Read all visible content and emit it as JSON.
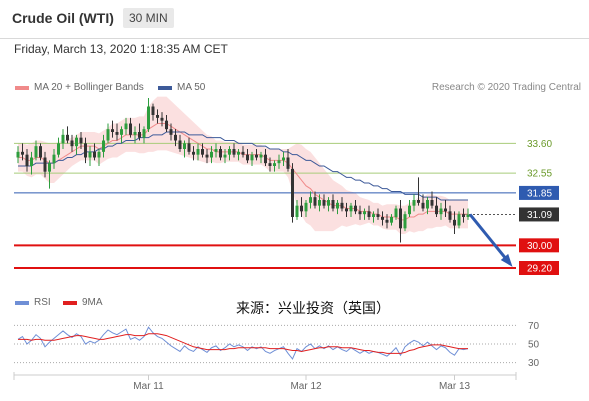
{
  "header": {
    "title": "Crude Oil (WTI)",
    "interval": "30 MIN"
  },
  "timestamp": "Friday, March 13, 2020 1:18:35 AM CET",
  "legend_main": [
    {
      "label": "MA 20 + Bollinger Bands",
      "color": "#f08a8a"
    },
    {
      "label": "MA 50",
      "color": "#3d5a99"
    }
  ],
  "legend_rsi": [
    {
      "label": "RSI",
      "color": "#6f8fd6"
    },
    {
      "label": "9MA",
      "color": "#e02020"
    }
  ],
  "credit": "Research © 2020 Trading Central",
  "source_note": "来源：兴业投资（英国）",
  "chart_data": {
    "type": "candlestick",
    "x_ticks": [
      "Mar 11",
      "Mar 12",
      "Mar 13"
    ],
    "price_range": [
      28.6,
      35.2
    ],
    "levels": [
      {
        "label": "33.60",
        "value": 33.6,
        "kind": "resistance"
      },
      {
        "label": "32.55",
        "value": 32.55,
        "kind": "resistance"
      },
      {
        "label": "31.85",
        "value": 31.85,
        "kind": "pivot"
      },
      {
        "label": "31.09",
        "value": 31.09,
        "kind": "last"
      },
      {
        "label": "30.00",
        "value": 30.0,
        "kind": "support"
      },
      {
        "label": "29.20",
        "value": 29.2,
        "kind": "support"
      }
    ],
    "candles": [
      [
        33.1,
        33.5,
        32.9,
        33.3
      ],
      [
        33.3,
        33.6,
        33.0,
        33.2
      ],
      [
        33.2,
        33.4,
        32.6,
        32.8
      ],
      [
        32.8,
        33.3,
        32.5,
        33.1
      ],
      [
        33.1,
        33.7,
        33.0,
        33.5
      ],
      [
        33.5,
        33.6,
        33.0,
        33.1
      ],
      [
        33.1,
        33.3,
        32.4,
        32.6
      ],
      [
        32.6,
        33.0,
        32.0,
        32.9
      ],
      [
        32.9,
        33.4,
        32.7,
        33.2
      ],
      [
        33.2,
        33.8,
        33.1,
        33.6
      ],
      [
        33.6,
        34.1,
        33.4,
        33.9
      ],
      [
        33.9,
        34.2,
        33.6,
        33.7
      ],
      [
        33.7,
        33.9,
        33.3,
        33.5
      ],
      [
        33.5,
        33.9,
        33.2,
        33.8
      ],
      [
        33.8,
        34.0,
        33.4,
        33.6
      ],
      [
        33.6,
        33.8,
        32.9,
        33.1
      ],
      [
        33.1,
        33.5,
        32.8,
        33.3
      ],
      [
        33.3,
        33.6,
        33.0,
        33.1
      ],
      [
        33.1,
        33.4,
        32.8,
        33.3
      ],
      [
        33.3,
        33.9,
        33.1,
        33.7
      ],
      [
        33.7,
        34.3,
        33.6,
        34.1
      ],
      [
        34.1,
        34.4,
        33.8,
        34.0
      ],
      [
        34.0,
        34.3,
        33.7,
        33.9
      ],
      [
        33.9,
        34.2,
        33.6,
        34.1
      ],
      [
        34.1,
        34.5,
        33.9,
        34.3
      ],
      [
        34.3,
        34.5,
        33.8,
        33.9
      ],
      [
        33.9,
        34.2,
        33.6,
        34.0
      ],
      [
        34.0,
        34.3,
        33.7,
        33.8
      ],
      [
        33.8,
        34.2,
        33.6,
        34.1
      ],
      [
        34.1,
        35.2,
        34.0,
        34.9
      ],
      [
        34.9,
        35.0,
        34.4,
        34.6
      ],
      [
        34.6,
        34.8,
        34.3,
        34.5
      ],
      [
        34.5,
        34.7,
        34.2,
        34.4
      ],
      [
        34.4,
        34.6,
        34.0,
        34.1
      ],
      [
        34.1,
        34.3,
        33.7,
        33.9
      ],
      [
        33.9,
        34.1,
        33.5,
        33.7
      ],
      [
        33.7,
        33.9,
        33.3,
        33.4
      ],
      [
        33.4,
        33.7,
        33.1,
        33.6
      ],
      [
        33.6,
        33.8,
        33.2,
        33.3
      ],
      [
        33.3,
        33.5,
        33.0,
        33.2
      ],
      [
        33.2,
        33.6,
        33.0,
        33.4
      ],
      [
        33.4,
        33.6,
        33.1,
        33.2
      ],
      [
        33.2,
        33.4,
        32.9,
        33.1
      ],
      [
        33.1,
        33.5,
        32.9,
        33.3
      ],
      [
        33.3,
        33.6,
        33.1,
        33.4
      ],
      [
        33.4,
        33.5,
        33.0,
        33.1
      ],
      [
        33.1,
        33.4,
        32.9,
        33.2
      ],
      [
        33.2,
        33.5,
        33.0,
        33.4
      ],
      [
        33.4,
        33.6,
        33.1,
        33.2
      ],
      [
        33.2,
        33.4,
        33.0,
        33.3
      ],
      [
        33.3,
        33.5,
        33.1,
        33.2
      ],
      [
        33.2,
        33.4,
        32.9,
        33.0
      ],
      [
        33.0,
        33.3,
        32.8,
        33.2
      ],
      [
        33.2,
        33.4,
        33.0,
        33.1
      ],
      [
        33.1,
        33.3,
        32.9,
        33.2
      ],
      [
        33.2,
        33.4,
        32.8,
        32.9
      ],
      [
        32.9,
        33.1,
        32.6,
        32.8
      ],
      [
        32.8,
        33.0,
        32.6,
        32.9
      ],
      [
        32.9,
        33.2,
        32.7,
        33.0
      ],
      [
        33.0,
        33.3,
        32.8,
        33.1
      ],
      [
        33.1,
        33.4,
        32.6,
        32.7
      ],
      [
        32.7,
        32.9,
        30.8,
        31.0
      ],
      [
        31.0,
        31.6,
        30.9,
        31.4
      ],
      [
        31.4,
        31.7,
        31.0,
        31.2
      ],
      [
        31.2,
        31.6,
        31.0,
        31.5
      ],
      [
        31.5,
        31.9,
        31.3,
        31.7
      ],
      [
        31.7,
        31.9,
        31.3,
        31.4
      ],
      [
        31.4,
        31.8,
        31.2,
        31.6
      ],
      [
        31.6,
        31.8,
        31.3,
        31.4
      ],
      [
        31.4,
        31.7,
        31.2,
        31.6
      ],
      [
        31.6,
        31.8,
        31.2,
        31.3
      ],
      [
        31.3,
        31.6,
        31.1,
        31.5
      ],
      [
        31.5,
        31.7,
        31.2,
        31.3
      ],
      [
        31.3,
        31.5,
        31.0,
        31.2
      ],
      [
        31.2,
        31.5,
        31.0,
        31.4
      ],
      [
        31.4,
        31.6,
        31.1,
        31.2
      ],
      [
        31.2,
        31.4,
        30.9,
        31.1
      ],
      [
        31.1,
        31.3,
        30.9,
        31.2
      ],
      [
        31.2,
        31.4,
        30.9,
        31.0
      ],
      [
        31.0,
        31.2,
        30.8,
        31.1
      ],
      [
        31.1,
        31.3,
        30.9,
        31.0
      ],
      [
        31.0,
        31.2,
        30.7,
        30.9
      ],
      [
        30.9,
        31.1,
        30.6,
        30.8
      ],
      [
        30.8,
        31.1,
        30.7,
        31.0
      ],
      [
        31.0,
        31.4,
        30.9,
        31.3
      ],
      [
        31.3,
        31.6,
        30.1,
        30.6
      ],
      [
        30.6,
        31.2,
        30.5,
        31.1
      ],
      [
        31.1,
        31.6,
        31.0,
        31.4
      ],
      [
        31.4,
        31.8,
        31.2,
        31.6
      ],
      [
        31.6,
        32.4,
        31.4,
        31.5
      ],
      [
        31.5,
        31.8,
        31.2,
        31.3
      ],
      [
        31.3,
        31.7,
        31.1,
        31.6
      ],
      [
        31.6,
        31.9,
        31.3,
        31.4
      ],
      [
        31.4,
        31.7,
        31.0,
        31.1
      ],
      [
        31.1,
        31.5,
        30.9,
        31.3
      ],
      [
        31.3,
        31.6,
        31.0,
        31.2
      ],
      [
        31.2,
        31.4,
        30.8,
        30.9
      ],
      [
        30.9,
        31.2,
        30.4,
        30.7
      ],
      [
        30.7,
        31.2,
        30.6,
        31.1
      ],
      [
        31.1,
        31.3,
        30.8,
        31.0
      ],
      [
        31.0,
        31.3,
        30.9,
        31.09
      ]
    ],
    "ma20": [
      33.1,
      33.1,
      33.0,
      33.0,
      33.1,
      33.1,
      33.0,
      32.9,
      32.9,
      33.0,
      33.1,
      33.2,
      33.3,
      33.4,
      33.5,
      33.5,
      33.5,
      33.5,
      33.4,
      33.5,
      33.6,
      33.7,
      33.7,
      33.8,
      33.9,
      33.9,
      33.9,
      33.9,
      33.9,
      34.1,
      34.2,
      34.3,
      34.3,
      34.3,
      34.2,
      34.1,
      34.0,
      33.9,
      33.8,
      33.7,
      33.6,
      33.5,
      33.4,
      33.4,
      33.3,
      33.3,
      33.3,
      33.3,
      33.3,
      33.3,
      33.2,
      33.2,
      33.2,
      33.2,
      33.2,
      33.1,
      33.0,
      33.0,
      33.0,
      33.0,
      32.9,
      32.7,
      32.5,
      32.3,
      32.1,
      32.0,
      31.8,
      31.7,
      31.6,
      31.5,
      31.4,
      31.4,
      31.4,
      31.3,
      31.3,
      31.3,
      31.2,
      31.2,
      31.2,
      31.1,
      31.1,
      31.0,
      31.0,
      31.0,
      31.0,
      30.9,
      30.9,
      31.0,
      31.0,
      31.1,
      31.1,
      31.2,
      31.2,
      31.2,
      31.2,
      31.2,
      31.1,
      31.1,
      31.1,
      31.1,
      31.1
    ],
    "ma50": [
      32.8,
      32.8,
      32.8,
      32.8,
      32.9,
      32.9,
      32.9,
      32.9,
      32.9,
      33.0,
      33.0,
      33.1,
      33.1,
      33.2,
      33.2,
      33.3,
      33.3,
      33.3,
      33.4,
      33.4,
      33.5,
      33.5,
      33.6,
      33.6,
      33.7,
      33.7,
      33.7,
      33.8,
      33.8,
      33.8,
      33.9,
      33.9,
      33.9,
      34.0,
      34.0,
      34.0,
      34.0,
      34.0,
      33.9,
      33.9,
      33.9,
      33.9,
      33.8,
      33.8,
      33.8,
      33.8,
      33.7,
      33.7,
      33.7,
      33.6,
      33.6,
      33.6,
      33.6,
      33.5,
      33.5,
      33.5,
      33.4,
      33.4,
      33.4,
      33.3,
      33.3,
      33.2,
      33.2,
      33.1,
      33.0,
      33.0,
      32.9,
      32.8,
      32.8,
      32.7,
      32.6,
      32.6,
      32.5,
      32.4,
      32.4,
      32.3,
      32.3,
      32.2,
      32.2,
      32.1,
      32.1,
      32.0,
      32.0,
      31.9,
      31.9,
      31.9,
      31.8,
      31.8,
      31.8,
      31.8,
      31.7,
      31.7,
      31.7,
      31.7,
      31.6,
      31.6,
      31.6,
      31.6,
      31.6,
      31.6,
      31.6
    ],
    "bb_width": [
      0.5,
      0.5,
      0.55,
      0.6,
      0.6,
      0.6,
      0.65,
      0.7,
      0.7,
      0.65,
      0.6,
      0.55,
      0.5,
      0.5,
      0.5,
      0.5,
      0.5,
      0.5,
      0.55,
      0.55,
      0.55,
      0.6,
      0.6,
      0.6,
      0.6,
      0.6,
      0.6,
      0.65,
      0.65,
      0.8,
      0.9,
      0.95,
      0.95,
      0.95,
      0.9,
      0.85,
      0.8,
      0.75,
      0.7,
      0.65,
      0.6,
      0.55,
      0.5,
      0.45,
      0.4,
      0.4,
      0.35,
      0.35,
      0.35,
      0.35,
      0.35,
      0.35,
      0.35,
      0.35,
      0.35,
      0.35,
      0.4,
      0.4,
      0.4,
      0.4,
      0.5,
      0.8,
      1.1,
      1.25,
      1.3,
      1.3,
      1.3,
      1.2,
      1.1,
      1.0,
      0.9,
      0.8,
      0.7,
      0.65,
      0.6,
      0.55,
      0.5,
      0.45,
      0.4,
      0.4,
      0.4,
      0.4,
      0.45,
      0.45,
      0.45,
      0.5,
      0.5,
      0.5,
      0.55,
      0.6,
      0.6,
      0.6,
      0.6,
      0.55,
      0.55,
      0.5,
      0.5,
      0.5,
      0.5,
      0.5,
      0.5
    ],
    "rsi_panel": {
      "levels": [
        70,
        50,
        30
      ],
      "range": [
        20,
        80
      ],
      "rsi": [
        55,
        58,
        50,
        54,
        60,
        56,
        47,
        52,
        56,
        60,
        64,
        60,
        57,
        61,
        58,
        50,
        53,
        51,
        54,
        60,
        65,
        62,
        60,
        63,
        66,
        55,
        57,
        54,
        58,
        68,
        62,
        58,
        56,
        52,
        48,
        45,
        42,
        48,
        44,
        42,
        47,
        44,
        41,
        46,
        48,
        43,
        46,
        50,
        47,
        49,
        47,
        43,
        47,
        45,
        47,
        42,
        40,
        43,
        45,
        47,
        40,
        34,
        45,
        42,
        47,
        50,
        45,
        48,
        45,
        48,
        44,
        47,
        44,
        42,
        46,
        43,
        40,
        43,
        40,
        42,
        41,
        39,
        37,
        41,
        46,
        38,
        47,
        51,
        54,
        52,
        48,
        52,
        48,
        44,
        48,
        46,
        41,
        38,
        45,
        44,
        45
      ],
      "ma9": [
        55,
        55,
        55,
        54,
        55,
        55,
        54,
        54,
        54,
        55,
        56,
        57,
        58,
        59,
        59,
        58,
        57,
        56,
        55,
        55,
        56,
        57,
        58,
        59,
        60,
        60,
        59,
        59,
        59,
        61,
        61,
        61,
        60,
        59,
        57,
        55,
        53,
        51,
        49,
        47,
        46,
        45,
        44,
        44,
        44,
        44,
        44,
        45,
        45,
        46,
        46,
        46,
        46,
        46,
        46,
        46,
        45,
        45,
        45,
        45,
        44,
        43,
        43,
        42,
        43,
        44,
        45,
        46,
        46,
        47,
        47,
        47,
        46,
        46,
        46,
        45,
        44,
        43,
        43,
        42,
        41,
        41,
        40,
        40,
        40,
        40,
        41,
        43,
        44,
        46,
        47,
        48,
        49,
        49,
        49,
        48,
        47,
        46,
        45,
        45,
        45
      ]
    }
  }
}
